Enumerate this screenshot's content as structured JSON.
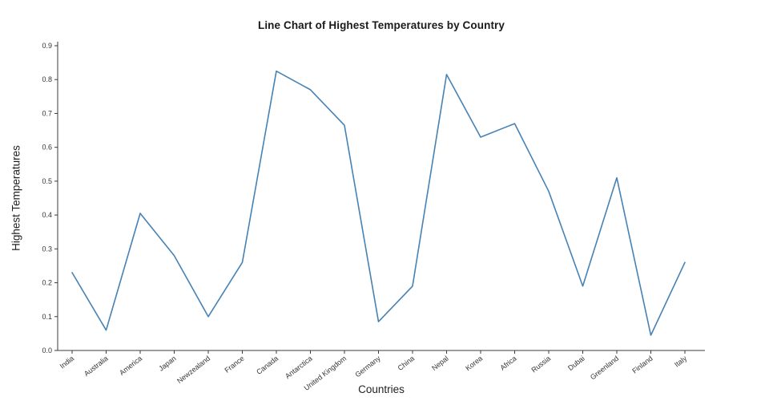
{
  "chart_data": {
    "type": "line",
    "title": "Line Chart of Highest Temperatures by Country",
    "xlabel": "Countries",
    "ylabel": "Highest Temperatures",
    "categories": [
      "India",
      "Australia",
      "America",
      "Japan",
      "Newzealand",
      "France",
      "Canada",
      "Antarctica",
      "United Kingdom",
      "Germany",
      "China",
      "Nepal",
      "Korea",
      "Africa",
      "Russia",
      "Dubai",
      "Greenland",
      "Finland",
      "Italy"
    ],
    "values": [
      0.23,
      0.06,
      0.405,
      0.28,
      0.1,
      0.26,
      0.825,
      0.77,
      0.665,
      0.085,
      0.19,
      0.815,
      0.63,
      0.67,
      0.47,
      0.19,
      0.51,
      0.045,
      0.26
    ],
    "ylim": [
      0.0,
      0.9
    ],
    "yticks": [
      0.0,
      0.1,
      0.2,
      0.3,
      0.4,
      0.5,
      0.6,
      0.7,
      0.8,
      0.9
    ],
    "ytick_labels": [
      "0.0",
      "0.1",
      "0.2",
      "0.3",
      "0.4",
      "0.5",
      "0.6",
      "0.7",
      "0.8",
      "0.9"
    ],
    "line_color": "#4682b4",
    "axis_color": "#3b3b3b",
    "tick_label_color": "#333333",
    "grid": false
  }
}
